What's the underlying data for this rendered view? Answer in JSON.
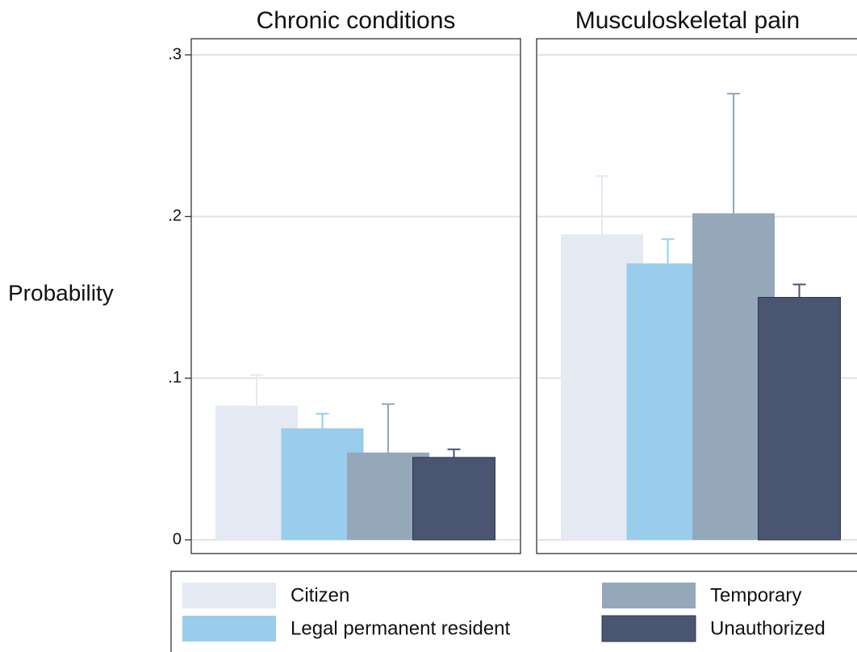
{
  "chart_data": {
    "type": "bar",
    "ylabel": "Probability",
    "categories": [
      "Chronic conditions",
      "Musculoskeletal pain"
    ],
    "ylim": [
      0,
      0.3
    ],
    "yticks": [
      0,
      {
        "value": 0.1,
        "label": ".1"
      },
      {
        "value": 0.2,
        "label": ".2"
      },
      {
        "value": 0.3,
        "label": ".3"
      }
    ],
    "grid": true,
    "series": [
      {
        "name": "Citizen",
        "color": "#e5e9f3",
        "values": [
          0.083,
          0.189
        ],
        "errors": [
          0.019,
          0.036
        ]
      },
      {
        "name": "Legal permanent resident",
        "color": "#9acceb",
        "values": [
          0.069,
          0.171
        ],
        "errors": [
          0.009,
          0.015
        ]
      },
      {
        "name": "Temporary",
        "color": "#94a8b9",
        "values": [
          0.054,
          0.202
        ],
        "errors": [
          0.03,
          0.074
        ]
      },
      {
        "name": "Unauthorized",
        "color": "#4a5572",
        "values": [
          0.051,
          0.15
        ],
        "errors": [
          0.005,
          0.008
        ]
      }
    ]
  }
}
